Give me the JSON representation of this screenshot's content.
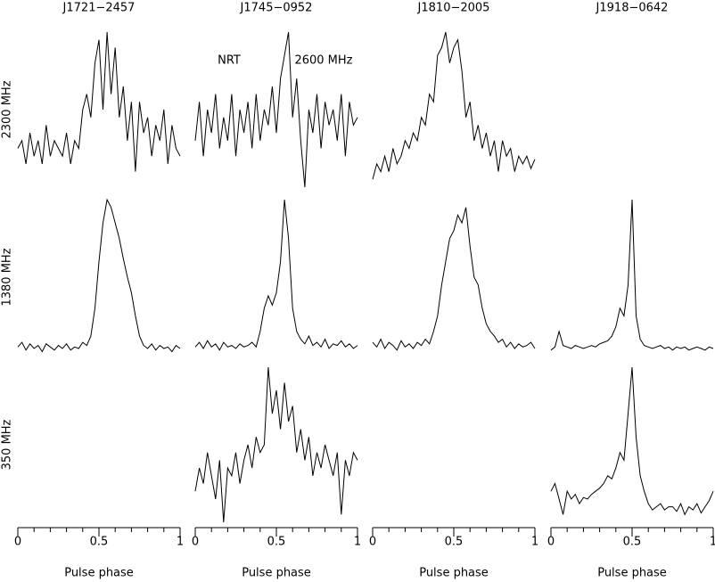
{
  "chart_data": [
    {
      "type": "line",
      "title": "J1721−2457",
      "xlabel": "Pulse phase",
      "xlim": [
        0,
        1
      ],
      "ylim": [
        0,
        1
      ],
      "xticks": [
        0,
        0.5,
        1
      ],
      "xminorticks": [
        0.1,
        0.2,
        0.3,
        0.4,
        0.6,
        0.7,
        0.8,
        0.9
      ],
      "x": [
        0,
        0.025,
        0.05,
        0.075,
        0.1,
        0.125,
        0.15,
        0.175,
        0.2,
        0.225,
        0.25,
        0.275,
        0.3,
        0.325,
        0.35,
        0.375,
        0.4,
        0.425,
        0.45,
        0.475,
        0.5,
        0.525,
        0.55,
        0.575,
        0.6,
        0.625,
        0.65,
        0.675,
        0.7,
        0.725,
        0.75,
        0.775,
        0.8,
        0.825,
        0.85,
        0.875,
        0.9,
        0.925,
        0.95,
        0.975,
        1
      ],
      "series": [
        {
          "name": "2300 MHz",
          "values": [
            0.25,
            0.3,
            0.15,
            0.35,
            0.2,
            0.3,
            0.15,
            0.4,
            0.2,
            0.3,
            0.25,
            0.2,
            0.35,
            0.15,
            0.3,
            0.25,
            0.5,
            0.6,
            0.45,
            0.8,
            0.95,
            0.5,
            1.0,
            0.6,
            0.9,
            0.45,
            0.65,
            0.3,
            0.55,
            0.1,
            0.55,
            0.35,
            0.45,
            0.2,
            0.4,
            0.3,
            0.5,
            0.15,
            0.4,
            0.25,
            0.2
          ]
        },
        {
          "name": "1380 MHz",
          "values": [
            0.05,
            0.08,
            0.03,
            0.07,
            0.04,
            0.06,
            0.02,
            0.07,
            0.05,
            0.03,
            0.06,
            0.04,
            0.07,
            0.03,
            0.05,
            0.04,
            0.08,
            0.06,
            0.12,
            0.3,
            0.6,
            0.85,
            1.0,
            0.95,
            0.85,
            0.75,
            0.62,
            0.5,
            0.4,
            0.25,
            0.12,
            0.06,
            0.04,
            0.07,
            0.03,
            0.06,
            0.04,
            0.05,
            0.02,
            0.06,
            0.04
          ]
        }
      ]
    },
    {
      "type": "line",
      "title": "J1745−0952",
      "xlabel": "Pulse phase",
      "xlim": [
        0,
        1
      ],
      "ylim": [
        0,
        1
      ],
      "xticks": [
        0,
        0.5,
        1
      ],
      "xminorticks": [
        0.1,
        0.2,
        0.3,
        0.4,
        0.6,
        0.7,
        0.8,
        0.9
      ],
      "x": [
        0,
        0.025,
        0.05,
        0.075,
        0.1,
        0.125,
        0.15,
        0.175,
        0.2,
        0.225,
        0.25,
        0.275,
        0.3,
        0.325,
        0.35,
        0.375,
        0.4,
        0.425,
        0.45,
        0.475,
        0.5,
        0.525,
        0.55,
        0.575,
        0.6,
        0.625,
        0.65,
        0.675,
        0.7,
        0.725,
        0.75,
        0.775,
        0.8,
        0.825,
        0.85,
        0.875,
        0.9,
        0.925,
        0.95,
        0.975,
        1
      ],
      "series": [
        {
          "name": "2300 MHz",
          "annotations": [
            "NRT",
            "2600 MHz"
          ],
          "values": [
            0.3,
            0.55,
            0.2,
            0.5,
            0.35,
            0.6,
            0.25,
            0.45,
            0.3,
            0.6,
            0.2,
            0.5,
            0.35,
            0.55,
            0.25,
            0.6,
            0.3,
            0.5,
            0.4,
            0.65,
            0.35,
            0.7,
            0.85,
            1.0,
            0.45,
            0.7,
            0.3,
            0.0,
            0.5,
            0.35,
            0.6,
            0.25,
            0.55,
            0.4,
            0.5,
            0.3,
            0.6,
            0.2,
            0.55,
            0.4,
            0.45
          ]
        },
        {
          "name": "1380 MHz",
          "values": [
            0.05,
            0.08,
            0.04,
            0.09,
            0.05,
            0.07,
            0.03,
            0.08,
            0.05,
            0.06,
            0.04,
            0.07,
            0.05,
            0.06,
            0.08,
            0.05,
            0.15,
            0.3,
            0.38,
            0.32,
            0.4,
            0.6,
            1.0,
            0.75,
            0.3,
            0.15,
            0.1,
            0.07,
            0.12,
            0.06,
            0.08,
            0.05,
            0.1,
            0.04,
            0.07,
            0.06,
            0.09,
            0.05,
            0.07,
            0.04,
            0.06
          ]
        },
        {
          "name": "350 MHz",
          "values": [
            0.2,
            0.35,
            0.25,
            0.45,
            0.3,
            0.15,
            0.4,
            0.0,
            0.35,
            0.3,
            0.45,
            0.25,
            0.4,
            0.5,
            0.35,
            0.55,
            0.45,
            0.5,
            1.0,
            0.7,
            0.85,
            0.6,
            0.9,
            0.65,
            0.75,
            0.45,
            0.6,
            0.4,
            0.55,
            0.3,
            0.45,
            0.35,
            0.5,
            0.4,
            0.3,
            0.45,
            0.05,
            0.4,
            0.3,
            0.45,
            0.4
          ]
        }
      ]
    },
    {
      "type": "line",
      "title": "J1810−2005",
      "xlabel": "Pulse phase",
      "xlim": [
        0,
        1
      ],
      "ylim": [
        0,
        1
      ],
      "xticks": [
        0,
        0.5,
        1
      ],
      "xminorticks": [
        0.1,
        0.2,
        0.3,
        0.4,
        0.6,
        0.7,
        0.8,
        0.9
      ],
      "x": [
        0,
        0.025,
        0.05,
        0.075,
        0.1,
        0.125,
        0.15,
        0.175,
        0.2,
        0.225,
        0.25,
        0.275,
        0.3,
        0.325,
        0.35,
        0.375,
        0.4,
        0.425,
        0.45,
        0.475,
        0.5,
        0.525,
        0.55,
        0.575,
        0.6,
        0.625,
        0.65,
        0.675,
        0.7,
        0.725,
        0.75,
        0.775,
        0.8,
        0.825,
        0.85,
        0.875,
        0.9,
        0.925,
        0.95,
        0.975,
        1
      ],
      "series": [
        {
          "name": "2300 MHz",
          "values": [
            0.05,
            0.15,
            0.1,
            0.2,
            0.1,
            0.25,
            0.15,
            0.2,
            0.3,
            0.25,
            0.35,
            0.3,
            0.45,
            0.4,
            0.6,
            0.55,
            0.85,
            0.9,
            1.0,
            0.8,
            0.9,
            0.95,
            0.75,
            0.45,
            0.55,
            0.3,
            0.4,
            0.25,
            0.35,
            0.2,
            0.3,
            0.1,
            0.3,
            0.2,
            0.25,
            0.1,
            0.2,
            0.15,
            0.2,
            0.12,
            0.18
          ]
        },
        {
          "name": "1380 MHz",
          "values": [
            0.08,
            0.05,
            0.1,
            0.04,
            0.08,
            0.06,
            0.03,
            0.09,
            0.05,
            0.07,
            0.04,
            0.08,
            0.06,
            0.1,
            0.07,
            0.15,
            0.25,
            0.45,
            0.6,
            0.75,
            0.8,
            0.9,
            0.85,
            0.95,
            0.7,
            0.5,
            0.45,
            0.3,
            0.2,
            0.15,
            0.12,
            0.08,
            0.1,
            0.05,
            0.08,
            0.04,
            0.07,
            0.05,
            0.06,
            0.08,
            0.04
          ]
        }
      ]
    },
    {
      "type": "line",
      "title": "J1918−0642",
      "xlabel": "Pulse phase",
      "xlim": [
        0,
        1
      ],
      "ylim": [
        0,
        1
      ],
      "xticks": [
        0,
        0.5,
        1
      ],
      "xminorticks": [
        0.1,
        0.2,
        0.3,
        0.4,
        0.6,
        0.7,
        0.8,
        0.9
      ],
      "x": [
        0,
        0.025,
        0.05,
        0.075,
        0.1,
        0.125,
        0.15,
        0.175,
        0.2,
        0.225,
        0.25,
        0.275,
        0.3,
        0.325,
        0.35,
        0.375,
        0.4,
        0.425,
        0.45,
        0.475,
        0.5,
        0.525,
        0.55,
        0.575,
        0.6,
        0.625,
        0.65,
        0.675,
        0.7,
        0.725,
        0.75,
        0.775,
        0.8,
        0.825,
        0.85,
        0.875,
        0.9,
        0.925,
        0.95,
        0.975,
        1
      ],
      "series": [
        {
          "name": "1380 MHz",
          "values": [
            0.03,
            0.05,
            0.15,
            0.06,
            0.05,
            0.04,
            0.06,
            0.05,
            0.04,
            0.05,
            0.06,
            0.05,
            0.07,
            0.08,
            0.09,
            0.12,
            0.18,
            0.3,
            0.25,
            0.45,
            1.0,
            0.25,
            0.1,
            0.06,
            0.05,
            0.04,
            0.05,
            0.06,
            0.04,
            0.05,
            0.03,
            0.05,
            0.04,
            0.05,
            0.03,
            0.04,
            0.05,
            0.04,
            0.03,
            0.05,
            0.04
          ]
        },
        {
          "name": "350 MHz",
          "values": [
            0.2,
            0.25,
            0.15,
            0.05,
            0.2,
            0.15,
            0.18,
            0.12,
            0.16,
            0.15,
            0.18,
            0.2,
            0.22,
            0.25,
            0.3,
            0.28,
            0.35,
            0.45,
            0.4,
            0.7,
            1.0,
            0.55,
            0.3,
            0.2,
            0.12,
            0.08,
            0.1,
            0.12,
            0.08,
            0.1,
            0.1,
            0.07,
            0.12,
            0.05,
            0.1,
            0.08,
            0.12,
            0.06,
            0.1,
            0.14,
            0.2
          ]
        }
      ]
    }
  ]
}
